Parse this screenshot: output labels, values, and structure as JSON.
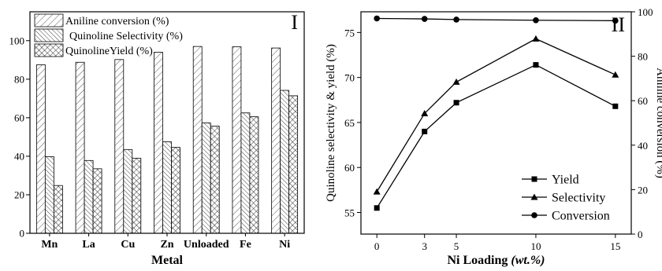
{
  "chart_data": [
    {
      "type": "bar",
      "panel_label": "I",
      "categories": [
        "Mn",
        "La",
        "Cu",
        "Zn",
        "Unloaded",
        "Fe",
        "Ni"
      ],
      "xlabel": "Metal",
      "ylabel": "",
      "ylim": [
        0,
        115
      ],
      "yticks": [
        0,
        20,
        40,
        60,
        80,
        100
      ],
      "legend_position": "top-left",
      "series": [
        {
          "name": "Aniline conversion (%)",
          "pattern": "diagonal-forward",
          "values": [
            87.5,
            88.8,
            90.2,
            94.0,
            97.0,
            96.8,
            96.2
          ]
        },
        {
          "name": "Quinoline Selectivity (%)",
          "pattern": "diagonal-backward",
          "values": [
            39.8,
            37.8,
            43.5,
            47.5,
            57.3,
            62.5,
            74.2
          ]
        },
        {
          "name": "QuinolineYield (%)",
          "pattern": "crosshatch",
          "values": [
            24.8,
            33.5,
            39.0,
            44.6,
            55.6,
            60.5,
            71.4
          ]
        }
      ]
    },
    {
      "type": "line",
      "panel_label": "II",
      "x": [
        0,
        3,
        5,
        10,
        15
      ],
      "xticks": [
        0,
        3,
        5,
        10,
        15
      ],
      "xlabel_main": "Ni Loading ",
      "xlabel_unit": "(wt.%)",
      "ylabel_left": "Quinoline selectivity & yield (%)",
      "ylabel_right": "Aniline conversion (%)",
      "ylim_left": [
        52.6,
        77.3
      ],
      "yticks_left": [
        55,
        60,
        65,
        70,
        75
      ],
      "ylim_right": [
        0,
        100
      ],
      "yticks_right": [
        0,
        20,
        40,
        60,
        80,
        100
      ],
      "legend_position": "bottom-right",
      "series": [
        {
          "name": "Yield",
          "marker": "square",
          "axis": "left",
          "values": [
            55.5,
            64.0,
            67.2,
            71.4,
            66.8
          ]
        },
        {
          "name": "Selectivity",
          "marker": "triangle",
          "axis": "left",
          "values": [
            57.3,
            66.0,
            69.5,
            74.3,
            70.3
          ]
        },
        {
          "name": "Conversion",
          "marker": "circle",
          "axis": "right",
          "values": [
            97.0,
            96.8,
            96.5,
            96.2,
            96.0
          ]
        }
      ]
    }
  ]
}
